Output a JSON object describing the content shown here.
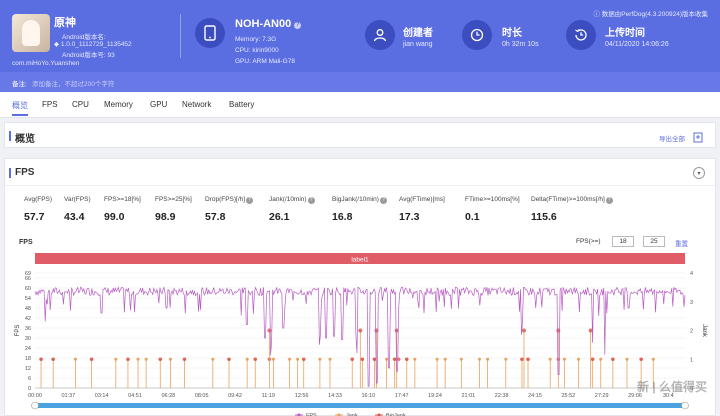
{
  "app": {
    "name": "原神",
    "android_name_label": "Android版本名:",
    "version_line": "1.0.0_1112729_1135452",
    "android_version_label": "Android版本号: 93",
    "package": "com.miHoYo.Yuanshen"
  },
  "device": {
    "name": "NOH-AN00",
    "memory": "Memory: 7.3G",
    "cpu": "CPU: kirin9000",
    "gpu": "GPU: ARM Mali-G78"
  },
  "creator": {
    "title": "创建者",
    "value": "jian wang"
  },
  "duration": {
    "title": "时长",
    "value": "0h 32m 10s"
  },
  "upload": {
    "title": "上传时间",
    "value": "04/11/2020 14:06:26"
  },
  "version_text": "数据由PerfDog(4.3.200924)版本收集",
  "note": {
    "label": "备注:",
    "placeholder": "添加备注，不超过200个字符"
  },
  "tabs": [
    "概览",
    "FPS",
    "CPU",
    "Memory",
    "GPU",
    "Network",
    "Battery"
  ],
  "overview": {
    "title": "概览",
    "export": "导出全部"
  },
  "fps_panel": {
    "title": "FPS",
    "collapse": "▾"
  },
  "metrics": [
    {
      "label": "Avg(FPS)",
      "value": "57.7",
      "help": false
    },
    {
      "label": "Var(FPS)",
      "value": "43.4",
      "help": false
    },
    {
      "label": "FPS>=18[%]",
      "value": "99.0",
      "help": false
    },
    {
      "label": "FPS>=25[%]",
      "value": "98.9",
      "help": false
    },
    {
      "label": "Drop(FPS)[/h]",
      "value": "57.8",
      "help": true
    },
    {
      "label": "Jank(/10min)",
      "value": "26.1",
      "help": true
    },
    {
      "label": "BigJank(/10min)",
      "value": "16.8",
      "help": true
    },
    {
      "label": "Avg(FTime)[ms]",
      "value": "17.3",
      "help": false
    },
    {
      "label": "FTime>=100ms[%]",
      "value": "0.1",
      "help": false
    },
    {
      "label": "Delta(FTime)>=100ms[/h]",
      "value": "115.6",
      "help": true
    }
  ],
  "fps_filter": {
    "heading": "FPS",
    "label": "FPS(>=)",
    "v1": "18",
    "v2": "25",
    "reset": "重置"
  },
  "chart_data": {
    "type": "line",
    "label_band": "label1",
    "ylabel_left": "FPS",
    "ylabel_right": "Jank",
    "yticks_left": [
      "0",
      "6",
      "12",
      "18",
      "24",
      "30",
      "36",
      "42",
      "48",
      "54",
      "60",
      "66",
      "69"
    ],
    "yticks_right": [
      "0",
      "1",
      "2",
      "3",
      "4"
    ],
    "ylim_left": [
      0,
      69
    ],
    "ylim_right": [
      0,
      4
    ],
    "xticks": [
      "00:00",
      "01:37",
      "03:14",
      "04:51",
      "06:28",
      "08:05",
      "09:42",
      "11:19",
      "12:56",
      "14:33",
      "16:10",
      "17:47",
      "19:24",
      "21:01",
      "22:38",
      "24:15",
      "25:52",
      "27:29",
      "29:06",
      "30:4"
    ],
    "legend": [
      "FPS",
      "Jank",
      "BigJank"
    ],
    "colors": {
      "fps": "#b85cc4",
      "jank": "#e8a15a",
      "bigjank": "#d9534f",
      "band": "#e05c66",
      "slider": "#4aa3e0"
    },
    "fps_baseline": 58,
    "fps_dips": [
      {
        "x_min": 0.5,
        "fps": 40
      },
      {
        "x_min": 3.3,
        "fps": 45
      },
      {
        "x_min": 6.5,
        "fps": 48
      },
      {
        "x_min": 10.5,
        "fps": 38
      },
      {
        "x_min": 11.4,
        "fps": 30
      },
      {
        "x_min": 11.7,
        "fps": 28
      },
      {
        "x_min": 12.3,
        "fps": 36
      },
      {
        "x_min": 14.1,
        "fps": 32
      },
      {
        "x_min": 14.4,
        "fps": 30
      },
      {
        "x_min": 14.8,
        "fps": 31
      },
      {
        "x_min": 15.2,
        "fps": 29
      },
      {
        "x_min": 15.9,
        "fps": 32
      },
      {
        "x_min": 16.5,
        "fps": 1
      },
      {
        "x_min": 16.9,
        "fps": 3
      },
      {
        "x_min": 17.5,
        "fps": 12
      },
      {
        "x_min": 17.9,
        "fps": 10
      },
      {
        "x_min": 19.0,
        "fps": 48
      },
      {
        "x_min": 24.1,
        "fps": 40
      },
      {
        "x_min": 25.9,
        "fps": 8
      },
      {
        "x_min": 27.6,
        "fps": 41
      },
      {
        "x_min": 28.2,
        "fps": 20
      },
      {
        "x_min": 29.4,
        "fps": 48
      }
    ],
    "jank_x_min": [
      0.3,
      0.9,
      2.0,
      2.8,
      4.0,
      4.6,
      5.1,
      5.5,
      6.2,
      6.7,
      7.4,
      8.8,
      9.6,
      10.5,
      10.9,
      11.8,
      12.6,
      13.0,
      13.3,
      14.1,
      14.6,
      15.7,
      16.2,
      16.8,
      17.4,
      17.8,
      18.4,
      18.8,
      19.9,
      20.3,
      21.1,
      22.0,
      22.4,
      23.3,
      24.1,
      24.4,
      25.5,
      26.2,
      26.9,
      27.6,
      28.0,
      28.6,
      29.3,
      30.0,
      30.6
    ],
    "bigjank_x_min": [
      0.3,
      0.9,
      2.8,
      4.6,
      6.2,
      7.4,
      9.6,
      10.9,
      11.6,
      13.3,
      15.7,
      16.2,
      16.8,
      17.8,
      18.0,
      18.4,
      24.1,
      24.4,
      25.9,
      27.6,
      28.6,
      30.0
    ],
    "bigjank_high_x_min": [
      11.6,
      16.1,
      16.9,
      17.9,
      24.2,
      25.9,
      27.5
    ],
    "x_total_min": 32.17
  },
  "watermark": "新 | 么值得买"
}
